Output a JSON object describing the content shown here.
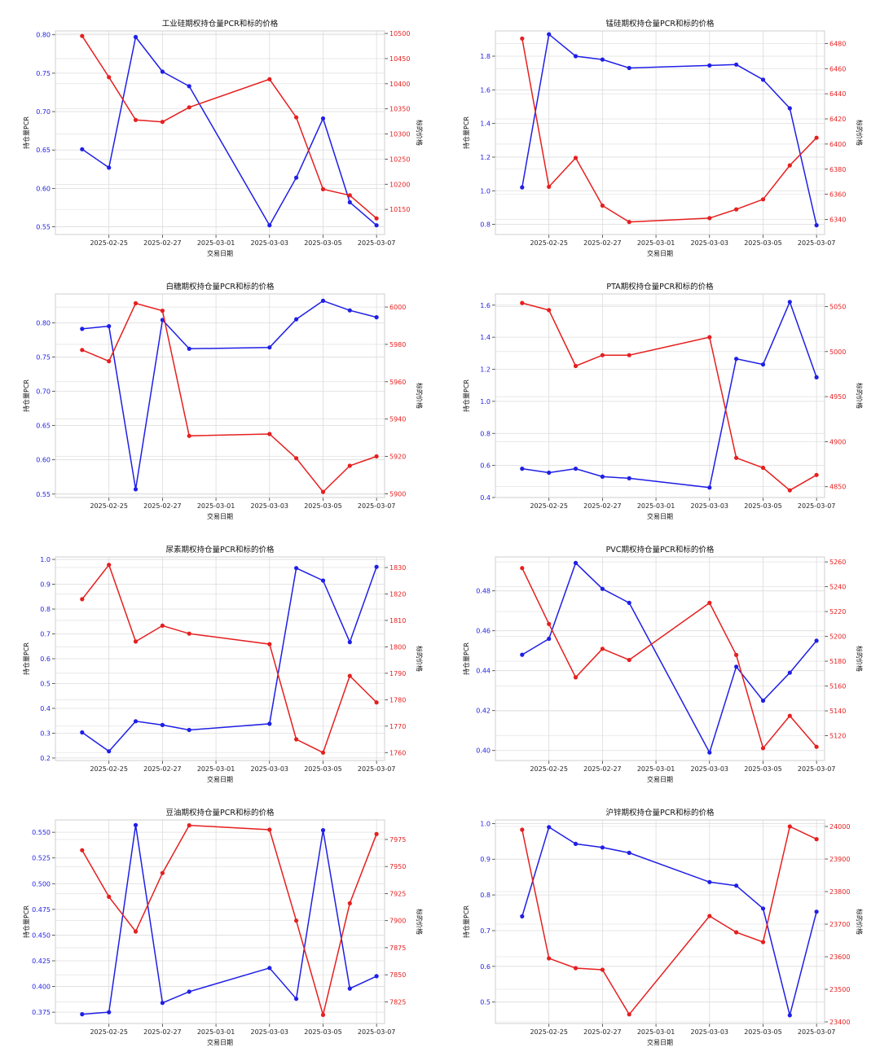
{
  "colors": {
    "pcr": "#1f1fe6",
    "price": "#e61f1f",
    "grid": "#dcdcdc",
    "axis": "#333333"
  },
  "chart_data": [
    {
      "type": "line",
      "title": "工业硅期权持仓量PCR和标的价格",
      "xlabel": "交易日期",
      "ylabel": "持仓量PCR",
      "y2label": "标的价格",
      "x_ticks": [
        "2025-02-25",
        "2025-02-27",
        "2025-03-01",
        "2025-03-03",
        "2025-03-05",
        "2025-03-07"
      ],
      "x": [
        "2025-02-24",
        "2025-02-25",
        "2025-02-26",
        "2025-02-27",
        "2025-02-28",
        "2025-03-03",
        "2025-03-04",
        "2025-03-05",
        "2025-03-06",
        "2025-03-07"
      ],
      "ylim": [
        0.54,
        0.805
      ],
      "y_ticks": [
        "0.55",
        "0.60",
        "0.65",
        "0.70",
        "0.75",
        "0.80"
      ],
      "y2lim": [
        10100,
        10505
      ],
      "y2_ticks": [
        "10150",
        "10200",
        "10250",
        "10300",
        "10350",
        "10400",
        "10450",
        "10500"
      ],
      "series": [
        {
          "axis": "left",
          "values": [
            0.651,
            0.627,
            0.797,
            0.752,
            0.733,
            0.552,
            0.614,
            0.691,
            0.582,
            0.552
          ]
        },
        {
          "axis": "right",
          "values": [
            10495,
            10413,
            10328,
            10324,
            10353,
            10409,
            10333,
            10190,
            10178,
            10132
          ]
        }
      ]
    },
    {
      "type": "line",
      "title": "锰硅期权持仓量PCR和标的价格",
      "xlabel": "交易日期",
      "ylabel": "持仓量PCR",
      "y2label": "标的价格",
      "x_ticks": [
        "2025-02-25",
        "2025-02-27",
        "2025-03-01",
        "2025-03-03",
        "2025-03-05",
        "2025-03-07"
      ],
      "x": [
        "2025-02-24",
        "2025-02-25",
        "2025-02-26",
        "2025-02-27",
        "2025-02-28",
        "2025-03-03",
        "2025-03-04",
        "2025-03-05",
        "2025-03-06",
        "2025-03-07"
      ],
      "ylim": [
        0.74,
        1.95
      ],
      "y_ticks": [
        "0.8",
        "1.0",
        "1.2",
        "1.4",
        "1.6",
        "1.8"
      ],
      "y2lim": [
        6328,
        6490
      ],
      "y2_ticks": [
        "6340",
        "6360",
        "6380",
        "6400",
        "6420",
        "6440",
        "6460",
        "6480"
      ],
      "series": [
        {
          "axis": "left",
          "values": [
            1.02,
            1.93,
            1.8,
            1.78,
            1.73,
            1.745,
            1.75,
            1.66,
            1.49,
            0.795
          ]
        },
        {
          "axis": "right",
          "values": [
            6484,
            6366,
            6389,
            6351,
            6338,
            6341,
            6348,
            6356,
            6383,
            6405
          ]
        }
      ]
    },
    {
      "type": "line",
      "title": "白糖期权持仓量PCR和标的价格",
      "xlabel": "交易日期",
      "ylabel": "持仓量PCR",
      "y2label": "标的价格",
      "x_ticks": [
        "2025-02-25",
        "2025-02-27",
        "2025-03-01",
        "2025-03-03",
        "2025-03-05",
        "2025-03-07"
      ],
      "x": [
        "2025-02-24",
        "2025-02-25",
        "2025-02-26",
        "2025-02-27",
        "2025-02-28",
        "2025-03-03",
        "2025-03-04",
        "2025-03-05",
        "2025-03-06",
        "2025-03-07"
      ],
      "ylim": [
        0.545,
        0.842
      ],
      "y_ticks": [
        "0.55",
        "0.60",
        "0.65",
        "0.70",
        "0.75",
        "0.80"
      ],
      "y2lim": [
        5898,
        6007
      ],
      "y2_ticks": [
        "5900",
        "5920",
        "5940",
        "5960",
        "5980",
        "6000"
      ],
      "series": [
        {
          "axis": "left",
          "values": [
            0.791,
            0.795,
            0.557,
            0.804,
            0.762,
            0.764,
            0.805,
            0.832,
            0.818,
            0.808
          ]
        },
        {
          "axis": "right",
          "values": [
            5977,
            5971,
            6002,
            5998,
            5931,
            5932,
            5919,
            5901,
            5915,
            5920
          ]
        }
      ]
    },
    {
      "type": "line",
      "title": "PTA期权持仓量PCR和标的价格",
      "xlabel": "交易日期",
      "ylabel": "持仓量PCR",
      "y2label": "标的价格",
      "x_ticks": [
        "2025-02-25",
        "2025-02-27",
        "2025-03-01",
        "2025-03-03",
        "2025-03-05",
        "2025-03-07"
      ],
      "x": [
        "2025-02-24",
        "2025-02-25",
        "2025-02-26",
        "2025-02-27",
        "2025-02-28",
        "2025-03-03",
        "2025-03-04",
        "2025-03-05",
        "2025-03-06",
        "2025-03-07"
      ],
      "ylim": [
        0.4,
        1.67
      ],
      "y_ticks": [
        "0.4",
        "0.6",
        "0.8",
        "1.0",
        "1.2",
        "1.4",
        "1.6"
      ],
      "y2lim": [
        4838,
        5064
      ],
      "y2_ticks": [
        "4850",
        "4900",
        "4950",
        "5000",
        "5050"
      ],
      "series": [
        {
          "axis": "left",
          "values": [
            0.58,
            0.555,
            0.58,
            0.53,
            0.52,
            0.462,
            1.265,
            1.23,
            1.62,
            1.15
          ]
        },
        {
          "axis": "right",
          "values": [
            5054,
            5046,
            4984,
            4996,
            4996,
            5016,
            4882,
            4871,
            4846,
            4863
          ]
        }
      ]
    },
    {
      "type": "line",
      "title": "尿素期权持仓量PCR和标的价格",
      "xlabel": "交易日期",
      "ylabel": "持仓量PCR",
      "y2label": "标的价格",
      "x_ticks": [
        "2025-02-25",
        "2025-02-27",
        "2025-03-01",
        "2025-03-03",
        "2025-03-05",
        "2025-03-07"
      ],
      "x": [
        "2025-02-24",
        "2025-02-25",
        "2025-02-26",
        "2025-02-27",
        "2025-02-28",
        "2025-03-03",
        "2025-03-04",
        "2025-03-05",
        "2025-03-06",
        "2025-03-07"
      ],
      "ylim": [
        0.19,
        1.01
      ],
      "y_ticks": [
        "0.2",
        "0.3",
        "0.4",
        "0.5",
        "0.6",
        "0.7",
        "0.8",
        "0.9",
        "1.0"
      ],
      "y2lim": [
        1757,
        1834
      ],
      "y2_ticks": [
        "1760",
        "1770",
        "1780",
        "1790",
        "1800",
        "1810",
        "1820",
        "1830"
      ],
      "series": [
        {
          "axis": "left",
          "values": [
            0.303,
            0.227,
            0.348,
            0.333,
            0.313,
            0.338,
            0.965,
            0.915,
            0.667,
            0.97
          ]
        },
        {
          "axis": "right",
          "values": [
            1818,
            1831,
            1802,
            1808,
            1805,
            1801,
            1765,
            1760,
            1789,
            1779
          ]
        }
      ]
    },
    {
      "type": "line",
      "title": "PVC期权持仓量PCR和标的价格",
      "xlabel": "交易日期",
      "ylabel": "持仓量PCR",
      "y2label": "标的价格",
      "x_ticks": [
        "2025-02-25",
        "2025-02-27",
        "2025-03-01",
        "2025-03-03",
        "2025-03-05",
        "2025-03-07"
      ],
      "x": [
        "2025-02-24",
        "2025-02-25",
        "2025-02-26",
        "2025-02-27",
        "2025-02-28",
        "2025-03-03",
        "2025-03-04",
        "2025-03-05",
        "2025-03-06",
        "2025-03-07"
      ],
      "ylim": [
        0.395,
        0.497
      ],
      "y_ticks": [
        "0.40",
        "0.42",
        "0.44",
        "0.46",
        "0.48"
      ],
      "y2lim": [
        5100,
        5264
      ],
      "y2_ticks": [
        "5120",
        "5140",
        "5160",
        "5180",
        "5200",
        "5220",
        "5240",
        "5260"
      ],
      "series": [
        {
          "axis": "left",
          "values": [
            0.448,
            0.456,
            0.494,
            0.481,
            0.474,
            0.399,
            0.442,
            0.425,
            0.439,
            0.455
          ]
        },
        {
          "axis": "right",
          "values": [
            5255,
            5210,
            5167,
            5190,
            5181,
            5227,
            5185,
            5110,
            5136,
            5111
          ]
        }
      ]
    },
    {
      "type": "line",
      "title": "豆油期权持仓量PCR和标的价格",
      "xlabel": "交易日期",
      "ylabel": "持仓量PCR",
      "y2label": "标的价格",
      "x_ticks": [
        "2025-02-25",
        "2025-02-27",
        "2025-03-01",
        "2025-03-03",
        "2025-03-05",
        "2025-03-07"
      ],
      "x": [
        "2025-02-24",
        "2025-02-25",
        "2025-02-26",
        "2025-02-27",
        "2025-02-28",
        "2025-03-03",
        "2025-03-04",
        "2025-03-05",
        "2025-03-06",
        "2025-03-07"
      ],
      "ylim": [
        0.364,
        0.562
      ],
      "y_ticks": [
        "0.375",
        "0.400",
        "0.425",
        "0.450",
        "0.475",
        "0.500",
        "0.525",
        "0.550"
      ],
      "y2lim": [
        7805,
        7993
      ],
      "y2_ticks": [
        "7825",
        "7850",
        "7875",
        "7900",
        "7925",
        "7950",
        "7975"
      ],
      "series": [
        {
          "axis": "left",
          "values": [
            0.373,
            0.375,
            0.557,
            0.384,
            0.395,
            0.418,
            0.388,
            0.552,
            0.398,
            0.41
          ]
        },
        {
          "axis": "right",
          "values": [
            7965,
            7922,
            7890,
            7944,
            7988,
            7984,
            7900,
            7813,
            7916,
            7980
          ]
        }
      ]
    },
    {
      "type": "line",
      "title": "沪锌期权持仓量PCR和标的价格",
      "xlabel": "交易日期",
      "ylabel": "持仓量PCR",
      "y2label": "标的价格",
      "x_ticks": [
        "2025-02-25",
        "2025-02-27",
        "2025-03-01",
        "2025-03-03",
        "2025-03-05",
        "2025-03-07"
      ],
      "x": [
        "2025-02-24",
        "2025-02-25",
        "2025-02-26",
        "2025-02-27",
        "2025-02-28",
        "2025-03-03",
        "2025-03-04",
        "2025-03-05",
        "2025-03-06",
        "2025-03-07"
      ],
      "ylim": [
        0.44,
        1.01
      ],
      "y_ticks": [
        "0.5",
        "0.6",
        "0.7",
        "0.8",
        "0.9",
        "1.0"
      ],
      "y2lim": [
        23395,
        24020
      ],
      "y2_ticks": [
        "23400",
        "23500",
        "23600",
        "23700",
        "23800",
        "23900",
        "24000"
      ],
      "series": [
        {
          "axis": "left",
          "values": [
            0.74,
            0.99,
            0.943,
            0.933,
            0.918,
            0.836,
            0.826,
            0.762,
            0.463,
            0.753
          ]
        },
        {
          "axis": "right",
          "values": [
            23990,
            23595,
            23565,
            23560,
            23423,
            23725,
            23675,
            23645,
            24000,
            23961
          ]
        }
      ]
    }
  ]
}
